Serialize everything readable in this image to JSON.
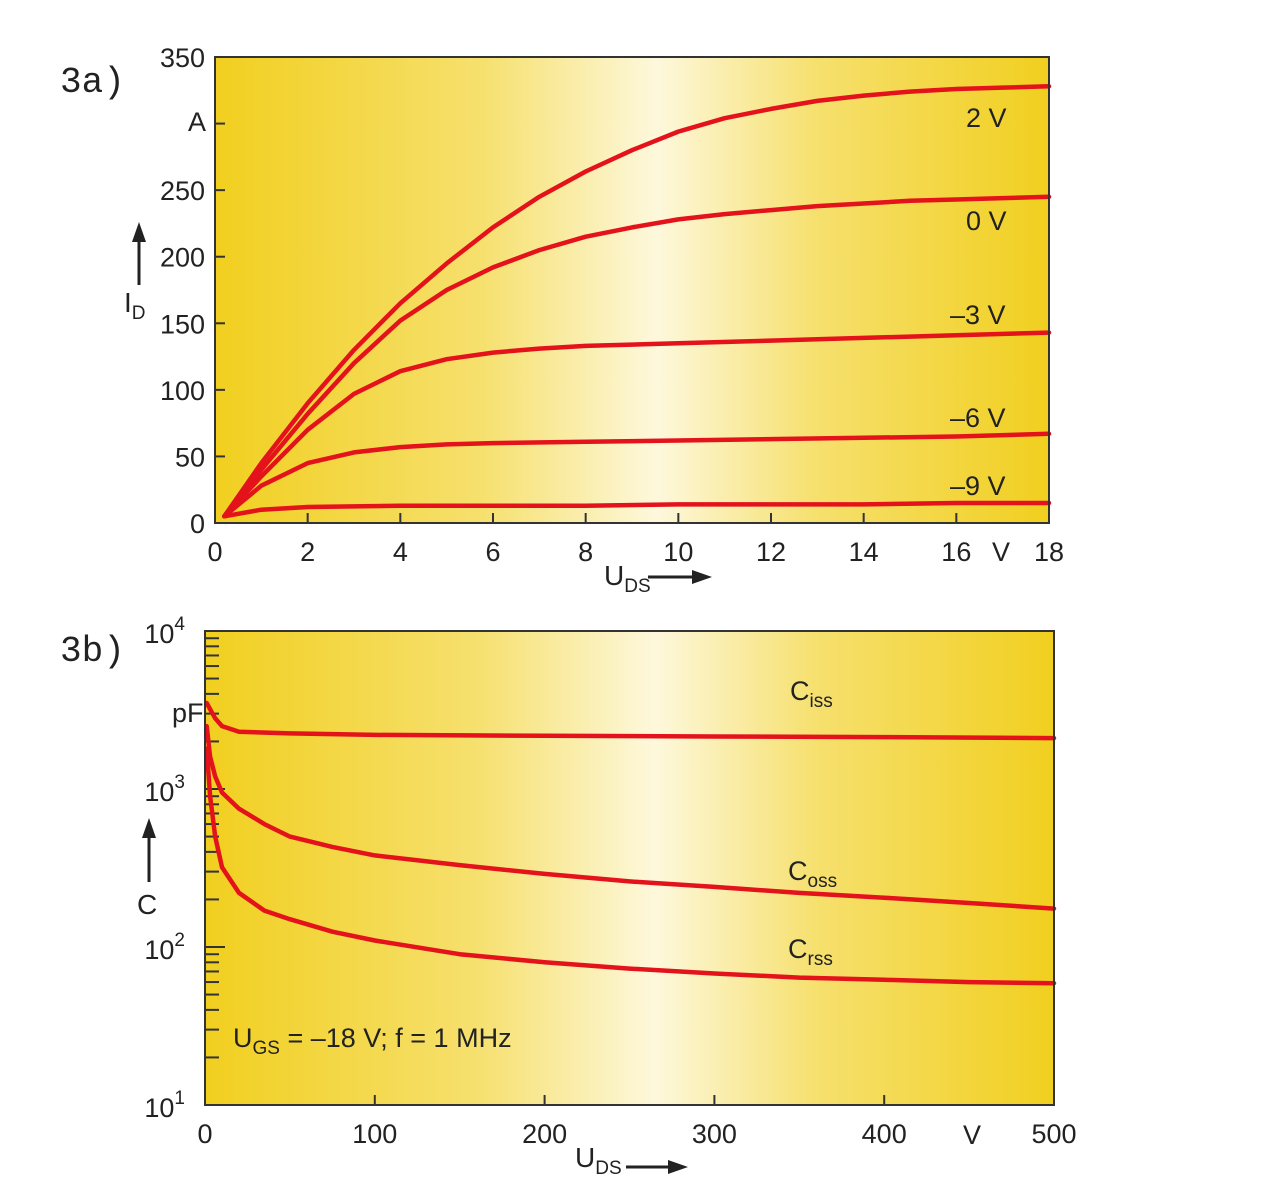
{
  "chart_data": [
    {
      "type": "line",
      "panel_label": "3a)",
      "xlabel": {
        "main": "U",
        "sub": "DS"
      },
      "ylabel": {
        "main": "I",
        "sub": "D"
      },
      "x_unit": "V",
      "y_unit": "A",
      "xlim": [
        0,
        18
      ],
      "ylim": [
        0,
        350
      ],
      "x_ticks": [
        "0",
        "2",
        "4",
        "6",
        "8",
        "10",
        "12",
        "14",
        "16",
        "18"
      ],
      "y_ticks": [
        "0",
        "50",
        "100",
        "150",
        "200",
        "250",
        "350"
      ],
      "x_tick_values": [
        0,
        2,
        4,
        6,
        8,
        10,
        12,
        14,
        16,
        18
      ],
      "y_tick_values": [
        0,
        50,
        100,
        150,
        200,
        250,
        350
      ],
      "series": [
        {
          "name": "2 V",
          "x": [
            0.2,
            1,
            2,
            3,
            4,
            5,
            6,
            7,
            8,
            9,
            10,
            11,
            12,
            13,
            14,
            15,
            16,
            17,
            18
          ],
          "y": [
            5,
            45,
            90,
            130,
            165,
            195,
            222,
            245,
            264,
            280,
            294,
            304,
            311,
            317,
            321,
            324,
            326,
            327,
            328
          ]
        },
        {
          "name": "0 V",
          "x": [
            0.2,
            1,
            2,
            3,
            4,
            5,
            6,
            7,
            8,
            9,
            10,
            11,
            12,
            13,
            14,
            15,
            16,
            17,
            18
          ],
          "y": [
            5,
            40,
            82,
            120,
            152,
            175,
            192,
            205,
            215,
            222,
            228,
            232,
            235,
            238,
            240,
            242,
            243,
            244,
            245
          ]
        },
        {
          "name": "–3 V",
          "x": [
            0.2,
            1,
            2,
            3,
            4,
            5,
            6,
            7,
            8,
            10,
            12,
            14,
            16,
            18
          ],
          "y": [
            5,
            35,
            70,
            97,
            114,
            123,
            128,
            131,
            133,
            135,
            137,
            139,
            141,
            143
          ]
        },
        {
          "name": "–6 V",
          "x": [
            0.2,
            1,
            2,
            3,
            4,
            5,
            6,
            8,
            10,
            12,
            14,
            16,
            18
          ],
          "y": [
            5,
            28,
            45,
            53,
            57,
            59,
            60,
            61,
            62,
            63,
            64,
            65,
            67
          ]
        },
        {
          "name": "–9 V",
          "x": [
            0.2,
            1,
            2,
            4,
            6,
            8,
            10,
            12,
            14,
            16,
            18
          ],
          "y": [
            5,
            10,
            12,
            13,
            13,
            13,
            14,
            14,
            14,
            15,
            15
          ]
        }
      ]
    },
    {
      "type": "line",
      "panel_label": "3b)",
      "xlabel": {
        "main": "U",
        "sub": "DS"
      },
      "ylabel": {
        "main": "C",
        "sub": ""
      },
      "x_unit": "V",
      "y_unit": "pF",
      "y_scale": "log",
      "xlim": [
        0,
        500
      ],
      "ylim": [
        10,
        10000
      ],
      "x_ticks": [
        "0",
        "100",
        "200",
        "300",
        "400",
        "500"
      ],
      "x_tick_values": [
        0,
        100,
        200,
        300,
        400,
        500
      ],
      "y_ticks": [
        {
          "base": "10",
          "exp": "1"
        },
        {
          "base": "10",
          "exp": "2"
        },
        {
          "base": "10",
          "exp": "3"
        },
        {
          "base": "10",
          "exp": "4"
        }
      ],
      "y_tick_values": [
        10,
        100,
        1000,
        10000
      ],
      "annotation": "U_GS = –18 V; f = 1 MHz",
      "annotation_parts": {
        "u": "U",
        "u_sub": "GS",
        "text": " = –18 V; f = 1 MHz"
      },
      "series": [
        {
          "name": "C_iss",
          "label": {
            "main": "C",
            "sub": "iss"
          },
          "x": [
            1,
            3,
            6,
            10,
            20,
            50,
            100,
            200,
            300,
            400,
            500
          ],
          "y": [
            3500,
            3200,
            2800,
            2500,
            2300,
            2250,
            2200,
            2170,
            2150,
            2130,
            2100
          ]
        },
        {
          "name": "C_oss",
          "label": {
            "main": "C",
            "sub": "oss"
          },
          "x": [
            1,
            3,
            6,
            10,
            20,
            35,
            50,
            75,
            100,
            150,
            200,
            250,
            300,
            350,
            400,
            450,
            500
          ],
          "y": [
            2500,
            1600,
            1200,
            950,
            750,
            600,
            500,
            430,
            380,
            330,
            290,
            260,
            240,
            220,
            205,
            190,
            175
          ]
        },
        {
          "name": "C_rss",
          "label": {
            "main": "C",
            "sub": "rss"
          },
          "x": [
            1,
            3,
            6,
            10,
            20,
            35,
            50,
            75,
            100,
            150,
            200,
            250,
            300,
            350,
            400,
            450,
            500
          ],
          "y": [
            1800,
            900,
            500,
            320,
            220,
            170,
            150,
            125,
            110,
            90,
            80,
            73,
            68,
            64,
            62,
            60,
            59
          ]
        }
      ]
    }
  ]
}
